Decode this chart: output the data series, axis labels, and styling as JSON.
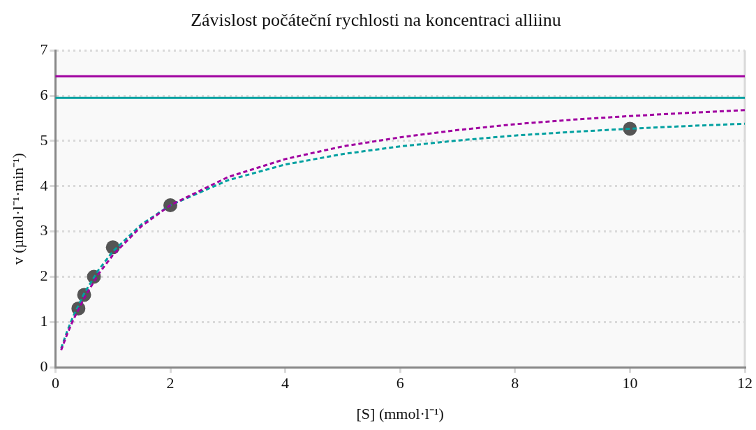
{
  "chart_data": {
    "type": "scatter",
    "title": "Závislost počáteční rychlosti na koncentraci alliinu",
    "xlabel": "[S] (mmol·l⁻¹)",
    "ylabel": "v (µmol·l⁻¹·min⁻¹)",
    "xlim": [
      0,
      12
    ],
    "xticks": [
      0,
      2,
      4,
      6,
      8,
      10,
      12
    ],
    "ylim": [
      0,
      7
    ],
    "yticks": [
      0,
      1,
      2,
      3,
      4,
      5,
      6,
      7
    ],
    "grid": "y",
    "legend": false,
    "series": [
      {
        "type": "line",
        "color": "#a000a0",
        "line_style": "dashed",
        "marker": "none",
        "x": [
          0.1,
          0.2,
          0.3,
          0.5,
          0.75,
          1,
          1.5,
          2,
          3,
          4,
          5,
          6,
          7,
          8,
          9,
          10,
          11,
          12
        ],
        "values": [
          0.38,
          0.72,
          1.02,
          1.53,
          2.06,
          2.48,
          3.12,
          3.58,
          4.2,
          4.6,
          4.88,
          5.08,
          5.24,
          5.37,
          5.47,
          5.55,
          5.62,
          5.68
        ]
      },
      {
        "type": "line",
        "color": "#00a0a0",
        "line_style": "dashed",
        "marker": "none",
        "x": [
          0.1,
          0.2,
          0.3,
          0.5,
          0.75,
          1,
          1.5,
          2,
          3,
          4,
          5,
          6,
          7,
          8,
          9,
          10,
          11,
          12
        ],
        "values": [
          0.42,
          0.78,
          1.1,
          1.63,
          2.15,
          2.56,
          3.16,
          3.58,
          4.13,
          4.48,
          4.71,
          4.88,
          5.01,
          5.12,
          5.2,
          5.27,
          5.33,
          5.38
        ]
      },
      {
        "color": "#555555",
        "marker": "circle",
        "x": [
          0.4,
          0.5,
          0.67,
          1,
          2,
          10
        ],
        "values": [
          1.3,
          1.6,
          2.0,
          2.65,
          3.58,
          5.27
        ]
      }
    ],
    "ref_lines": [
      {
        "axis": "y",
        "value": 6.43,
        "color": "#a000a0"
      },
      {
        "axis": "y",
        "value": 5.95,
        "color": "#00a0a0"
      }
    ]
  }
}
